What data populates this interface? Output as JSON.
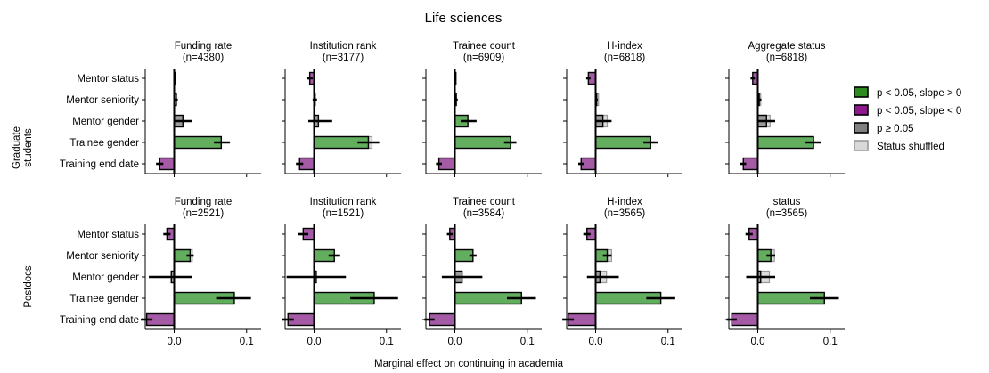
{
  "figure": {
    "title": "Life sciences",
    "xlabel": "Marginal effect on continuing in academia"
  },
  "legend": [
    {
      "key": "sig_pos",
      "label": "p < 0.05, slope > 0",
      "fill": "#2e8b1f",
      "stroke": "#000000"
    },
    {
      "key": "sig_neg",
      "label": "p < 0.05, slope < 0",
      "fill": "#8c1a8c",
      "stroke": "#000000"
    },
    {
      "key": "ns",
      "label": "p ≥ 0.05",
      "fill": "#808080",
      "stroke": "#000000"
    },
    {
      "key": "shuffled",
      "label": "Status shuffled",
      "fill": "#d9d9d9",
      "stroke": "#9a9a9a"
    }
  ],
  "colors": {
    "sig_pos": "#62ad5e",
    "sig_neg": "#a45aa4",
    "ns": "#9a9a9a",
    "shuffled": "#dcdcdc"
  },
  "chart_data": {
    "type": "bar",
    "orientation": "horizontal",
    "xlim": [
      -0.04,
      0.12
    ],
    "xticks": [
      "0.0",
      "0.1"
    ],
    "xtick_values": [
      0.0,
      0.1
    ],
    "categories": [
      "Mentor status",
      "Mentor seniority",
      "Mentor gender",
      "Trainee gender",
      "Training end date"
    ],
    "rows": [
      {
        "label": "Graduate\nstudents",
        "panels": [
          {
            "title": "Funding rate",
            "n": "(n=4380)",
            "values": [
              0.001,
              0.003,
              0.012,
              0.065,
              -0.02
            ],
            "err": [
              [
                0.0,
                0.002
              ],
              [
                0.001,
                0.005
              ],
              [
                0.0,
                0.025
              ],
              [
                0.055,
                0.077
              ],
              [
                -0.025,
                -0.015
              ]
            ],
            "sig": [
              "ns",
              "ns",
              "ns",
              "sig_pos",
              "sig_neg"
            ],
            "shuffled": [
              0.0,
              0.0,
              0.0,
              0.0,
              0.0
            ]
          },
          {
            "title": "Institution rank",
            "n": "(n=3177)",
            "values": [
              -0.006,
              0.001,
              0.006,
              0.075,
              -0.02
            ],
            "err": [
              [
                -0.01,
                -0.002
              ],
              [
                -0.002,
                0.004
              ],
              [
                -0.008,
                0.025
              ],
              [
                0.06,
                0.09
              ],
              [
                -0.025,
                -0.015
              ]
            ],
            "sig": [
              "sig_neg",
              "ns",
              "ns",
              "sig_pos",
              "sig_neg"
            ],
            "shuffled": [
              0.0,
              0.0,
              0.0,
              0.08,
              0.0
            ]
          },
          {
            "title": "Trainee count",
            "n": "(n=6909)",
            "values": [
              0.001,
              0.002,
              0.018,
              0.077,
              -0.022
            ],
            "err": [
              [
                0.0,
                0.002
              ],
              [
                0.0,
                0.004
              ],
              [
                0.008,
                0.03
              ],
              [
                0.068,
                0.085
              ],
              [
                -0.026,
                -0.018
              ]
            ],
            "sig": [
              "ns",
              "ns",
              "sig_pos",
              "sig_pos",
              "sig_neg"
            ],
            "shuffled": [
              0.0,
              0.0,
              0.0,
              0.0,
              0.0
            ]
          },
          {
            "title": "H-index",
            "n": "(n=6818)",
            "values": [
              -0.01,
              0.001,
              0.01,
              0.076,
              -0.02
            ],
            "err": [
              [
                -0.013,
                -0.007
              ],
              [
                -0.001,
                0.003
              ],
              [
                0.0,
                0.022
              ],
              [
                0.066,
                0.086
              ],
              [
                -0.024,
                -0.016
              ]
            ],
            "sig": [
              "sig_neg",
              "ns",
              "ns",
              "sig_pos",
              "sig_neg"
            ],
            "shuffled": [
              0.0,
              0.004,
              0.016,
              0.0,
              0.0
            ]
          },
          {
            "title": "Aggregate status",
            "n": "(n=6818)",
            "values": [
              -0.007,
              0.002,
              0.012,
              0.077,
              -0.02
            ],
            "err": [
              [
                -0.01,
                -0.004
              ],
              [
                0.0,
                0.005
              ],
              [
                0.0,
                0.024
              ],
              [
                0.066,
                0.088
              ],
              [
                -0.024,
                -0.016
              ]
            ],
            "sig": [
              "sig_neg",
              "ns",
              "ns",
              "sig_pos",
              "sig_neg"
            ],
            "shuffled": [
              0.0,
              0.004,
              0.017,
              0.0,
              0.0
            ]
          }
        ]
      },
      {
        "label": "Postdocs",
        "panels": [
          {
            "title": "Funding rate",
            "n": "(n=2521)",
            "values": [
              -0.01,
              0.022,
              -0.004,
              0.083,
              -0.038
            ],
            "err": [
              [
                -0.015,
                -0.005
              ],
              [
                0.017,
                0.027
              ],
              [
                -0.035,
                0.025
              ],
              [
                0.058,
                0.106
              ],
              [
                -0.046,
                -0.03
              ]
            ],
            "sig": [
              "sig_neg",
              "sig_pos",
              "ns",
              "sig_pos",
              "sig_neg"
            ],
            "shuffled": [
              0.0,
              0.025,
              0.0,
              0.0,
              0.0
            ]
          },
          {
            "title": "Institution rank",
            "n": "(n=1521)",
            "values": [
              -0.015,
              0.028,
              0.003,
              0.083,
              -0.036
            ],
            "err": [
              [
                -0.022,
                -0.008
              ],
              [
                0.02,
                0.036
              ],
              [
                -0.038,
                0.044
              ],
              [
                0.05,
                0.116
              ],
              [
                -0.044,
                -0.028
              ]
            ],
            "sig": [
              "sig_neg",
              "sig_pos",
              "ns",
              "sig_pos",
              "sig_neg"
            ],
            "shuffled": [
              0.0,
              0.0,
              0.0,
              0.0,
              0.0
            ]
          },
          {
            "title": "Trainee count",
            "n": "(n=3584)",
            "values": [
              -0.007,
              0.025,
              0.01,
              0.092,
              -0.035
            ],
            "err": [
              [
                -0.011,
                -0.003
              ],
              [
                0.02,
                0.03
              ],
              [
                -0.018,
                0.038
              ],
              [
                0.072,
                0.112
              ],
              [
                -0.042,
                -0.028
              ]
            ],
            "sig": [
              "sig_neg",
              "sig_pos",
              "ns",
              "sig_pos",
              "sig_neg"
            ],
            "shuffled": [
              0.0,
              0.0,
              0.0,
              0.0,
              0.0
            ]
          },
          {
            "title": "H-index",
            "n": "(n=3565)",
            "values": [
              -0.012,
              0.016,
              0.006,
              0.09,
              -0.038
            ],
            "err": [
              [
                -0.017,
                -0.007
              ],
              [
                0.01,
                0.022
              ],
              [
                -0.012,
                0.032
              ],
              [
                0.07,
                0.11
              ],
              [
                -0.046,
                -0.03
              ]
            ],
            "sig": [
              "sig_neg",
              "sig_pos",
              "ns",
              "sig_pos",
              "sig_neg"
            ],
            "shuffled": [
              0.0,
              0.022,
              0.015,
              0.0,
              0.0
            ]
          },
          {
            "title": "status",
            "n": "(n=3565)",
            "values": [
              -0.012,
              0.018,
              0.004,
              0.092,
              -0.036
            ],
            "err": [
              [
                -0.017,
                -0.007
              ],
              [
                0.012,
                0.024
              ],
              [
                -0.016,
                0.024
              ],
              [
                0.072,
                0.112
              ],
              [
                -0.043,
                -0.029
              ]
            ],
            "sig": [
              "sig_neg",
              "sig_pos",
              "ns",
              "sig_pos",
              "sig_neg"
            ],
            "shuffled": [
              0.0,
              0.023,
              0.016,
              0.0,
              0.0
            ]
          }
        ]
      }
    ]
  }
}
